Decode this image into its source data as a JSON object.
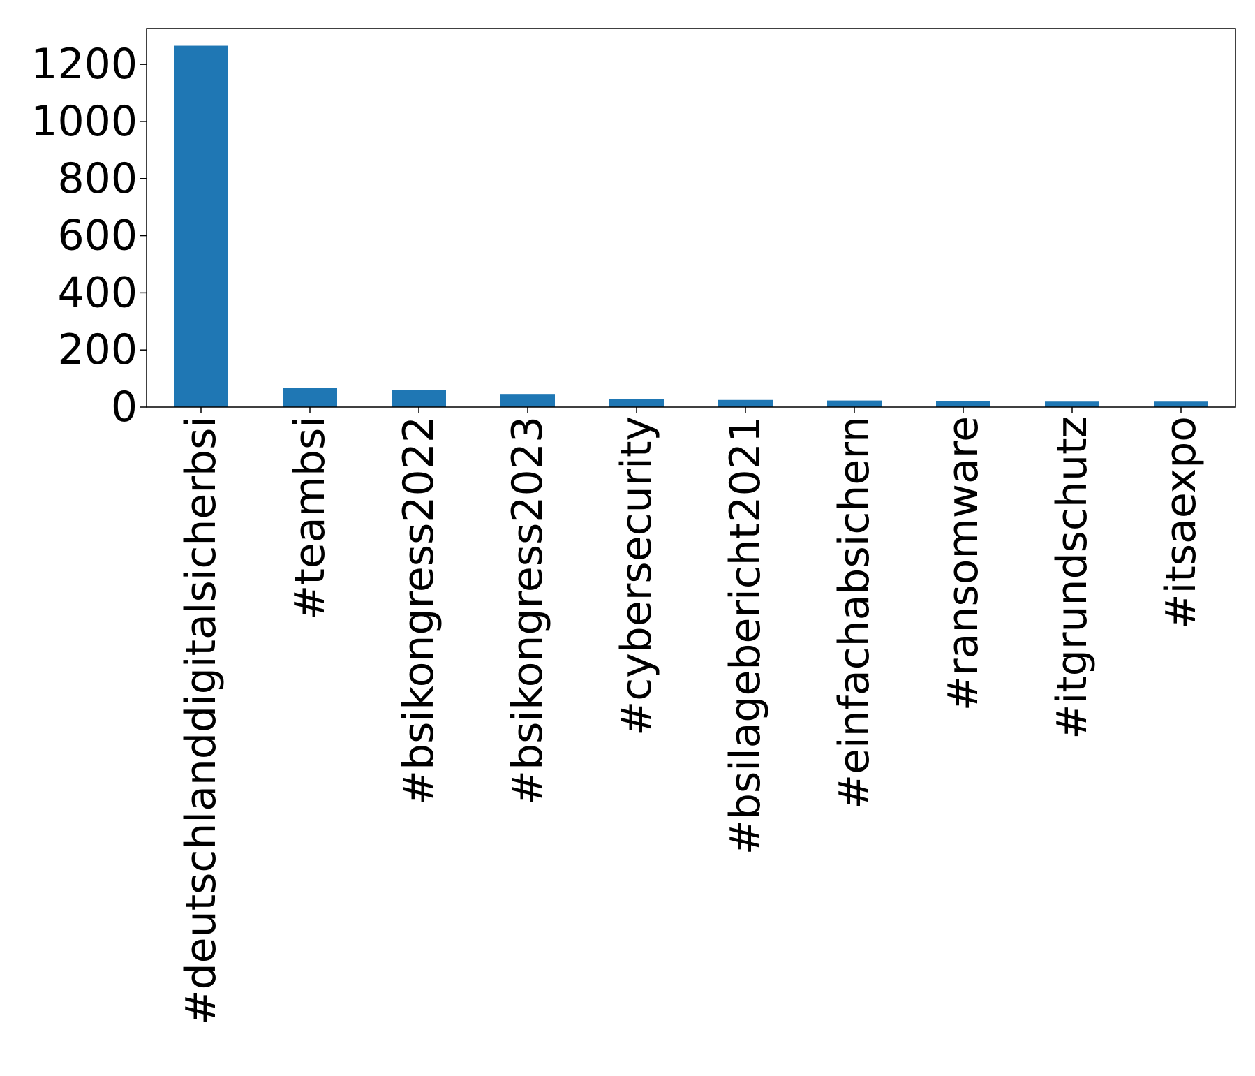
{
  "chart_data": {
    "type": "bar",
    "title": "",
    "xlabel": "",
    "ylabel": "",
    "categories": [
      "#deutschlanddigitalsicherbsi",
      "#teambsi",
      "#bsikongress2022",
      "#bsikongress2023",
      "#cybersecurity",
      "#bsilagebericht2021",
      "#einfachabsichern",
      "#ransomware",
      "#itgrundschutz",
      "#itsaexpo"
    ],
    "values": [
      1265,
      68,
      59,
      46,
      28,
      25,
      23,
      21,
      19,
      19
    ],
    "ylim": [
      0,
      1325
    ],
    "yticks": [
      0,
      200,
      400,
      600,
      800,
      1000,
      1200
    ],
    "grid": false,
    "legend": "none",
    "bar_color": "#1f77b4"
  }
}
